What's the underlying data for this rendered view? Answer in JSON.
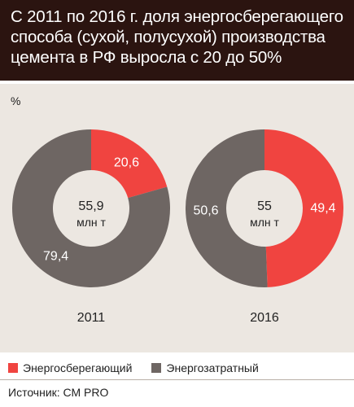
{
  "title": "С 2011 по 2016 г. доля энергосберегающего способа (сухой, полусухой) производства цемента в РФ выросла с 20 до 50%",
  "source": "Источник: СМ PRO",
  "colors": {
    "energy_saving": "#f04440",
    "energy_costly": "#6e6663",
    "header_bg": "#2b1410",
    "panel_bg": "#ece7e1"
  },
  "chart_data": {
    "type": "pie",
    "unit_label": "%",
    "legend": [
      "Энергосберегающий",
      "Энергозатратный"
    ],
    "charts": [
      {
        "year": "2011",
        "center_value": "55,9",
        "center_unit": "млн т",
        "slices": [
          {
            "name": "Энергосберегающий",
            "value": 20.6,
            "label": "20,6"
          },
          {
            "name": "Энергозатратный",
            "value": 79.4,
            "label": "79,4"
          }
        ]
      },
      {
        "year": "2016",
        "center_value": "55",
        "center_unit": "млн т",
        "slices": [
          {
            "name": "Энергосберегающий",
            "value": 49.4,
            "label": "49,4"
          },
          {
            "name": "Энергозатратный",
            "value": 50.6,
            "label": "50,6"
          }
        ]
      }
    ]
  }
}
